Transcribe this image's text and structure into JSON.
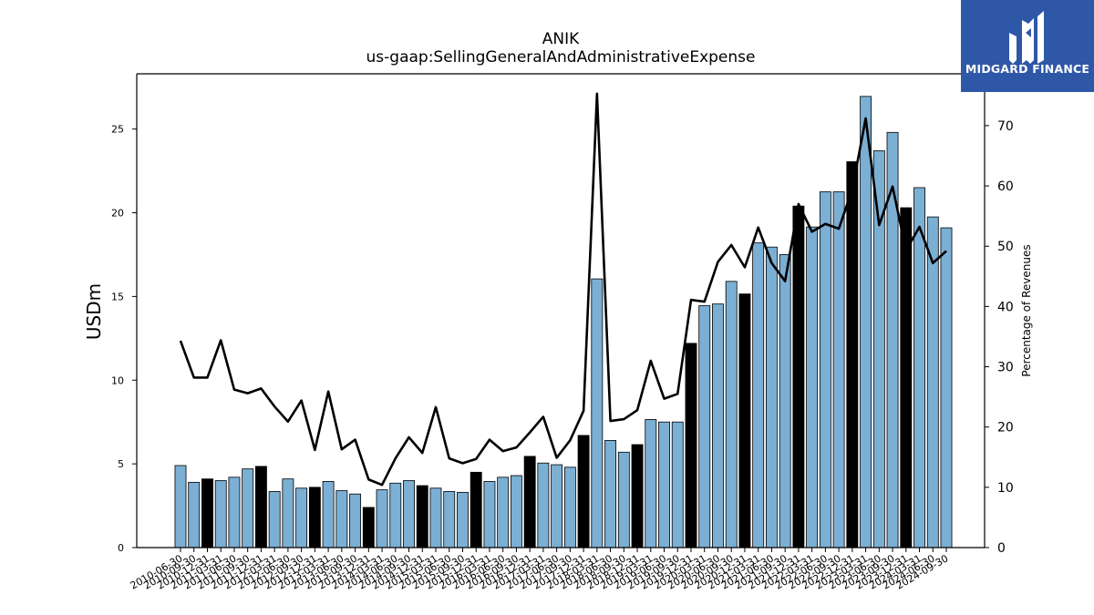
{
  "chart_data": {
    "type": "bar",
    "title": "ANIK",
    "subtitle": "us-gaap:SellingGeneralAndAdministrativeExpense",
    "ylabel": "USDm",
    "y2label": "Percentage of Revenues",
    "ylim": [
      0,
      28.3
    ],
    "y2lim": [
      0,
      78.6
    ],
    "yticks": [
      0,
      5,
      10,
      15,
      20,
      25
    ],
    "y2ticks": [
      0,
      10,
      20,
      30,
      40,
      50,
      60,
      70
    ],
    "colors": {
      "quarter_bar": "#7bafd4",
      "annual_bar": "#000000",
      "line": "#000000"
    },
    "categories": [
      "2010-06-30",
      "2010-09-30",
      "2010-12-31",
      "2011-03-31",
      "2011-06-30",
      "2011-09-30",
      "2011-12-31",
      "2012-03-31",
      "2012-06-30",
      "2012-09-30",
      "2012-12-31",
      "2013-03-31",
      "2013-06-30",
      "2013-09-30",
      "2013-12-31",
      "2014-03-31",
      "2014-06-30",
      "2014-09-30",
      "2014-12-31",
      "2015-03-31",
      "2015-06-30",
      "2015-09-30",
      "2015-12-31",
      "2016-03-31",
      "2016-06-30",
      "2016-09-30",
      "2016-12-31",
      "2017-03-31",
      "2017-06-30",
      "2017-09-30",
      "2017-12-31",
      "2018-03-31",
      "2018-06-30",
      "2018-09-30",
      "2018-12-31",
      "2019-03-31",
      "2019-06-30",
      "2019-09-30",
      "2019-12-31",
      "2020-03-31",
      "2020-06-30",
      "2020-09-30",
      "2020-12-31",
      "2021-03-31",
      "2021-06-30",
      "2021-09-30",
      "2021-12-31",
      "2022-03-31",
      "2022-06-30",
      "2022-09-30",
      "2022-12-31",
      "2023-03-31",
      "2023-06-30",
      "2023-09-30",
      "2023-12-31",
      "2024-03-31",
      "2024-06-30",
      "2024-09-30"
    ],
    "series": [
      {
        "name": "",
        "axis": "left",
        "values": [
          4.9,
          3.9,
          4.1,
          4.0,
          4.2,
          4.7,
          4.85,
          3.35,
          4.1,
          3.55,
          3.6,
          3.95,
          3.4,
          3.2,
          2.4,
          3.45,
          3.85,
          4.0,
          3.7,
          3.55,
          3.35,
          3.3,
          4.5,
          3.95,
          4.2,
          4.3,
          5.45,
          5.05,
          4.95,
          4.8,
          6.7,
          16.05,
          6.4,
          5.7,
          6.15,
          7.65,
          7.5,
          7.5,
          12.2,
          14.45,
          14.55,
          15.9,
          15.15,
          18.2,
          17.95,
          17.5,
          20.4,
          19.15,
          21.25,
          21.25,
          23.05,
          26.95,
          23.7,
          24.8,
          20.3,
          21.5,
          19.75,
          19.1
        ],
        "annual": [
          false,
          false,
          true,
          false,
          false,
          false,
          true,
          false,
          false,
          false,
          true,
          false,
          false,
          false,
          true,
          false,
          false,
          false,
          true,
          false,
          false,
          false,
          true,
          false,
          false,
          false,
          true,
          false,
          false,
          false,
          true,
          false,
          false,
          false,
          true,
          false,
          false,
          false,
          true,
          false,
          false,
          false,
          true,
          false,
          false,
          false,
          true,
          false,
          false,
          false,
          true,
          false,
          false,
          false,
          true,
          false,
          false,
          false
        ]
      },
      {
        "name": "",
        "axis": "right",
        "type": "line",
        "values": [
          34.3,
          28.2,
          28.2,
          34.4,
          26.2,
          25.6,
          26.4,
          23.4,
          20.9,
          24.4,
          16.2,
          25.9,
          16.3,
          17.9,
          11.3,
          10.4,
          14.8,
          18.3,
          15.7,
          23.3,
          14.8,
          14.0,
          14.7,
          17.9,
          16.0,
          16.6,
          19.1,
          21.7,
          14.9,
          17.8,
          22.7,
          75.3,
          21.0,
          21.3,
          22.8,
          31.0,
          24.7,
          25.5,
          41.1,
          40.8,
          47.4,
          50.2,
          46.5,
          53.1,
          47.2,
          44.2,
          57.0,
          52.4,
          53.7,
          52.9,
          59.4,
          71.2,
          53.5,
          59.9,
          49.3,
          53.2,
          47.2,
          49.2
        ]
      }
    ],
    "legend": "none",
    "grid": false
  },
  "logo": {
    "name": "MIDGARD FINANCE"
  }
}
